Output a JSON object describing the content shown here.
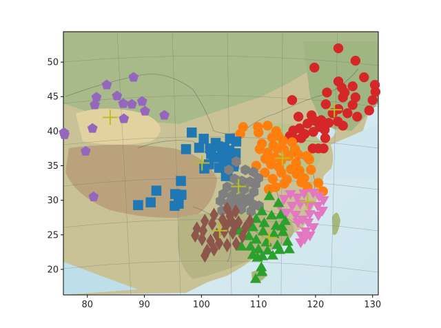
{
  "chart_data": {
    "type": "scatter",
    "title": "",
    "xlabel": "",
    "ylabel": "",
    "xlim": [
      75.8,
      131.0
    ],
    "ylim": [
      16.3,
      54.4
    ],
    "grid": false,
    "legend": "none",
    "background": "shaded-relief map of China with province boundaries and graticule",
    "x_ticks": [
      80,
      90,
      100,
      110,
      120,
      130
    ],
    "x_tick_labels": [
      "80",
      "90",
      "100",
      "110",
      "120",
      "130"
    ],
    "y_ticks": [
      20,
      25,
      30,
      35,
      40,
      45,
      50
    ],
    "y_tick_labels": [
      "20",
      "25",
      "30",
      "35",
      "40",
      "45",
      "50"
    ],
    "centroid_color": "#bcbd22",
    "series": [
      {
        "marker": "circle",
        "color": "#d62728",
        "centroid": [
          123.3,
          43.1
        ],
        "points": [
          [
            124.0,
            52.0
          ],
          [
            127.0,
            50.2
          ],
          [
            119.8,
            49.2
          ],
          [
            128.5,
            47.8
          ],
          [
            124.0,
            47.2
          ],
          [
            130.4,
            46.7
          ],
          [
            124.6,
            46.3
          ],
          [
            126.5,
            46.5
          ],
          [
            125.1,
            45.6
          ],
          [
            122.0,
            45.6
          ],
          [
            130.5,
            45.7
          ],
          [
            124.8,
            44.9
          ],
          [
            127.0,
            44.9
          ],
          [
            130.0,
            44.5
          ],
          [
            115.9,
            44.5
          ],
          [
            121.8,
            43.9
          ],
          [
            119.3,
            42.3
          ],
          [
            117.0,
            42.1
          ],
          [
            126.5,
            43.8
          ],
          [
            129.4,
            43.0
          ],
          [
            124.0,
            43.2
          ],
          [
            123.0,
            42.6
          ],
          [
            125.6,
            42.6
          ],
          [
            127.3,
            42.1
          ],
          [
            121.0,
            41.6
          ],
          [
            122.3,
            41.2
          ],
          [
            123.9,
            41.4
          ],
          [
            124.8,
            40.8
          ],
          [
            119.9,
            41.5
          ],
          [
            118.6,
            41.1
          ],
          [
            117.2,
            40.4
          ],
          [
            116.1,
            40.1
          ],
          [
            120.7,
            40.6
          ],
          [
            121.6,
            40.2
          ],
          [
            119.6,
            39.9
          ],
          [
            118.1,
            39.6
          ],
          [
            115.5,
            39.3
          ],
          [
            117.5,
            39.0
          ],
          [
            121.7,
            39.0
          ],
          [
            116.3,
            38.9
          ],
          [
            119.5,
            37.5
          ],
          [
            120.5,
            37.5
          ],
          [
            121.4,
            37.5
          ]
        ]
      },
      {
        "marker": "circle",
        "color": "#ff7f0e",
        "centroid": [
          114.2,
          36.1
        ],
        "points": [
          [
            107.3,
            40.6
          ],
          [
            109.9,
            40.6
          ],
          [
            111.6,
            40.8
          ],
          [
            113.1,
            40.0
          ],
          [
            110.0,
            39.8
          ],
          [
            106.8,
            39.6
          ],
          [
            113.5,
            39.3
          ],
          [
            112.4,
            39.1
          ],
          [
            114.3,
            38.6
          ],
          [
            110.6,
            38.2
          ],
          [
            115.9,
            38.4
          ],
          [
            112.6,
            37.9
          ],
          [
            110.2,
            37.4
          ],
          [
            113.3,
            37.5
          ],
          [
            114.5,
            37.3
          ],
          [
            116.4,
            37.4
          ],
          [
            111.6,
            36.9
          ],
          [
            115.3,
            36.4
          ],
          [
            117.0,
            36.6
          ],
          [
            118.5,
            36.4
          ],
          [
            112.9,
            36.2
          ],
          [
            111.2,
            36.0
          ],
          [
            114.0,
            35.8
          ],
          [
            116.6,
            35.4
          ],
          [
            118.9,
            35.9
          ],
          [
            109.6,
            35.0
          ],
          [
            112.2,
            35.2
          ],
          [
            113.6,
            34.8
          ],
          [
            115.7,
            34.5
          ],
          [
            117.2,
            34.3
          ],
          [
            111.1,
            34.0
          ],
          [
            114.0,
            34.0
          ],
          [
            116.7,
            33.8
          ],
          [
            119.2,
            34.4
          ],
          [
            112.5,
            33.1
          ],
          [
            115.0,
            33.0
          ],
          [
            118.0,
            33.2
          ],
          [
            114.5,
            32.4
          ],
          [
            113.0,
            31.9
          ],
          [
            111.8,
            31.6
          ],
          [
            117.5,
            32.6
          ],
          [
            120.5,
            32.5
          ],
          [
            118.6,
            31.9
          ],
          [
            121.3,
            31.3
          ]
        ]
      },
      {
        "marker": "square",
        "color": "#1f77b4",
        "centroid": [
          100.1,
          35.4
        ],
        "points": [
          [
            98.3,
            39.8
          ],
          [
            100.4,
            38.9
          ],
          [
            102.5,
            38.3
          ],
          [
            104.0,
            37.7
          ],
          [
            103.6,
            36.9
          ],
          [
            101.7,
            36.7
          ],
          [
            106.0,
            36.8
          ],
          [
            102.2,
            36.2
          ],
          [
            103.9,
            35.7
          ],
          [
            105.7,
            35.3
          ],
          [
            103.1,
            34.7
          ],
          [
            100.5,
            34.6
          ],
          [
            104.3,
            33.5
          ],
          [
            97.3,
            37.4
          ],
          [
            96.4,
            32.8
          ],
          [
            96.5,
            30.8
          ],
          [
            96.0,
            29.5
          ],
          [
            95.3,
            29.2
          ],
          [
            92.1,
            31.4
          ],
          [
            91.1,
            29.7
          ],
          [
            88.9,
            29.3
          ],
          [
            101.5,
            37.5
          ],
          [
            106.1,
            38.5
          ],
          [
            104.9,
            37.2
          ],
          [
            99.6,
            37.6
          ],
          [
            102.9,
            37.8
          ],
          [
            105.6,
            34.9
          ],
          [
            101.3,
            35.2
          ],
          [
            104.7,
            36.0
          ],
          [
            95.4,
            30.9
          ],
          [
            105.0,
            38.9
          ],
          [
            104.6,
            34.3
          ]
        ]
      },
      {
        "marker": "hexagon",
        "color": "#7f7f7f",
        "centroid": [
          106.5,
          32.0
        ],
        "points": [
          [
            106.1,
            35.6
          ],
          [
            104.8,
            34.4
          ],
          [
            107.7,
            34.4
          ],
          [
            109.1,
            34.1
          ],
          [
            110.0,
            33.2
          ],
          [
            105.8,
            33.1
          ],
          [
            107.1,
            32.8
          ],
          [
            108.5,
            32.7
          ],
          [
            109.5,
            32.3
          ],
          [
            104.5,
            31.9
          ],
          [
            106.0,
            31.7
          ],
          [
            107.5,
            31.6
          ],
          [
            109.2,
            31.2
          ],
          [
            103.8,
            30.9
          ],
          [
            105.3,
            30.6
          ],
          [
            106.9,
            30.4
          ],
          [
            108.4,
            30.3
          ],
          [
            103.3,
            29.9
          ],
          [
            104.7,
            29.6
          ],
          [
            106.2,
            29.5
          ],
          [
            107.6,
            29.7
          ],
          [
            109.1,
            29.4
          ],
          [
            103.6,
            28.5
          ],
          [
            105.3,
            28.4
          ],
          [
            107.0,
            28.7
          ],
          [
            108.7,
            28.4
          ],
          [
            110.1,
            29.2
          ]
        ]
      },
      {
        "marker": "triangle-down",
        "color": "#e377c2",
        "centroid": [
          118.6,
          29.8
        ],
        "points": [
          [
            114.5,
            30.3
          ],
          [
            115.6,
            31.0
          ],
          [
            116.8,
            30.5
          ],
          [
            118.0,
            31.1
          ],
          [
            119.6,
            31.2
          ],
          [
            120.6,
            30.7
          ],
          [
            121.4,
            30.1
          ],
          [
            113.7,
            29.3
          ],
          [
            115.9,
            29.3
          ],
          [
            117.3,
            29.6
          ],
          [
            118.9,
            29.3
          ],
          [
            120.4,
            29.3
          ],
          [
            121.2,
            28.6
          ],
          [
            114.9,
            28.3
          ],
          [
            116.5,
            28.0
          ],
          [
            119.0,
            28.1
          ],
          [
            120.5,
            27.9
          ],
          [
            116.9,
            26.9
          ],
          [
            118.7,
            26.9
          ],
          [
            119.6,
            26.2
          ],
          [
            118.3,
            25.6
          ],
          [
            119.0,
            25.0
          ],
          [
            117.5,
            25.0
          ],
          [
            118.1,
            24.5
          ],
          [
            117.4,
            24.0
          ],
          [
            117.7,
            27.3
          ]
        ]
      },
      {
        "marker": "triangle-up",
        "color": "#2ca02c",
        "centroid": [
          111.9,
          24.6
        ],
        "points": [
          [
            111.9,
            30.5
          ],
          [
            113.5,
            29.5
          ],
          [
            110.6,
            28.3
          ],
          [
            112.3,
            27.7
          ],
          [
            113.9,
            27.8
          ],
          [
            109.6,
            27.2
          ],
          [
            111.0,
            26.6
          ],
          [
            113.1,
            26.2
          ],
          [
            114.7,
            26.9
          ],
          [
            109.0,
            26.0
          ],
          [
            110.8,
            25.4
          ],
          [
            112.7,
            25.0
          ],
          [
            114.3,
            25.3
          ],
          [
            108.3,
            24.7
          ],
          [
            109.6,
            24.2
          ],
          [
            111.4,
            23.8
          ],
          [
            113.3,
            23.4
          ],
          [
            115.1,
            23.9
          ],
          [
            108.6,
            23.2
          ],
          [
            110.0,
            22.8
          ],
          [
            111.6,
            22.6
          ],
          [
            113.7,
            22.7
          ],
          [
            115.4,
            22.8
          ],
          [
            109.8,
            21.6
          ],
          [
            110.7,
            21.8
          ],
          [
            112.5,
            21.9
          ],
          [
            109.0,
            22.0
          ],
          [
            110.5,
            20.2
          ],
          [
            110.6,
            19.5
          ],
          [
            109.5,
            18.5
          ],
          [
            107.0,
            23.2
          ],
          [
            106.6,
            25.5
          ],
          [
            114.1,
            26.1
          ]
        ]
      },
      {
        "marker": "diamond",
        "color": "#8c564b",
        "centroid": [
          103.2,
          25.6
        ],
        "points": [
          [
            104.5,
            28.8
          ],
          [
            106.0,
            28.4
          ],
          [
            102.2,
            27.9
          ],
          [
            103.7,
            27.2
          ],
          [
            105.2,
            27.1
          ],
          [
            100.6,
            27.0
          ],
          [
            101.9,
            26.6
          ],
          [
            104.3,
            26.3
          ],
          [
            105.9,
            26.2
          ],
          [
            107.7,
            26.0
          ],
          [
            99.2,
            25.9
          ],
          [
            100.3,
            25.6
          ],
          [
            102.7,
            25.0
          ],
          [
            104.0,
            25.5
          ],
          [
            105.5,
            25.3
          ],
          [
            107.2,
            24.8
          ],
          [
            98.9,
            24.9
          ],
          [
            100.1,
            24.4
          ],
          [
            101.6,
            24.1
          ],
          [
            103.1,
            23.8
          ],
          [
            104.5,
            23.5
          ],
          [
            106.1,
            23.7
          ],
          [
            101.0,
            22.7
          ],
          [
            100.6,
            22.0
          ],
          [
            102.2,
            22.9
          ],
          [
            106.5,
            26.8
          ],
          [
            108.5,
            27.0
          ],
          [
            105.0,
            27.7
          ]
        ]
      },
      {
        "marker": "pentagon",
        "color": "#9467bd",
        "centroid": [
          84.0,
          42.0
        ],
        "points": [
          [
            88.1,
            47.8
          ],
          [
            83.4,
            46.7
          ],
          [
            85.2,
            45.1
          ],
          [
            81.6,
            44.9
          ],
          [
            89.6,
            44.3
          ],
          [
            86.3,
            44.0
          ],
          [
            87.8,
            43.9
          ],
          [
            81.3,
            43.8
          ],
          [
            90.1,
            42.9
          ],
          [
            93.5,
            42.3
          ],
          [
            86.4,
            41.8
          ],
          [
            80.9,
            40.4
          ],
          [
            76.0,
            39.5
          ],
          [
            75.9,
            39.8
          ],
          [
            79.7,
            37.1
          ],
          [
            81.1,
            30.5
          ]
        ]
      }
    ]
  }
}
